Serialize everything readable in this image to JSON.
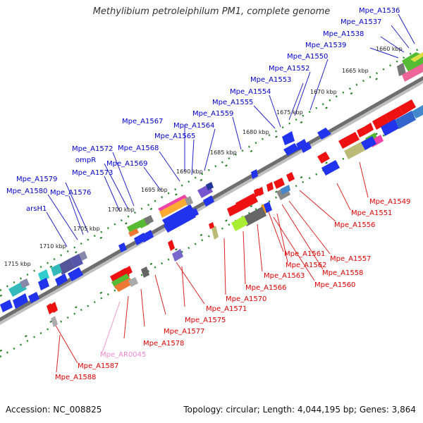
{
  "title": "Methylibium petroleiphilum PM1, complete genome",
  "footer": {
    "accession": "Accession: NC_008825",
    "summary": "Topology: circular; Length: 4,044,195 bp; Genes: 3,864"
  },
  "colors": {
    "backbone": "#7a7a7a",
    "forward_label": "#0000cc",
    "reverse_label": "#dd0000",
    "rna_label": "#ee88cc",
    "tick_dot": "#2a8a2a",
    "tick_dash": "#1e7a1e"
  },
  "scale_ticks": [
    "1660 kbp",
    "1665 kbp",
    "1670 kbp",
    "1675 kbp",
    "1680 kbp",
    "1685 kbp",
    "1690 kbp",
    "1695 kbp",
    "1700 kbp",
    "1705 kbp",
    "1710 kbp",
    "1715 kbp"
  ],
  "forward_labels": [
    "Mpe_A1536",
    "Mpe_A1537",
    "Mpe_A1538",
    "Mpe_A1539",
    "Mpe_A1550",
    "Mpe_A1552",
    "Mpe_A1553",
    "Mpe_A1554",
    "Mpe_A1555",
    "Mpe_A1559",
    "Mpe_A1564",
    "Mpe_A1567",
    "Mpe_A1565",
    "Mpe_A1568",
    "Mpe_A1572",
    "ompR",
    "Mpe_A1569",
    "Mpe_A1573",
    "Mpe_A1579",
    "Mpe_A1576",
    "Mpe_A1580",
    "arsH1"
  ],
  "reverse_labels": [
    "Mpe_A1549",
    "Mpe_A1551",
    "Mpe_A1556",
    "Mpe_A1557",
    "Mpe_A1561",
    "Mpe_A1558",
    "Mpe_A1562",
    "Mpe_A1560",
    "Mpe_A1563",
    "Mpe_A1566",
    "Mpe_A1570",
    "Mpe_A1571",
    "Mpe_A1575",
    "Mpe_A1577",
    "Mpe_A1578",
    "Mpe_AR0045",
    "Mpe_A1587",
    "Mpe_A1588"
  ]
}
